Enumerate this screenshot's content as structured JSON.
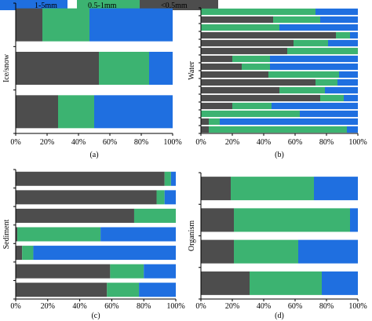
{
  "colors": {
    "lt05": "#4d4d4d",
    "r05_1": "#3cb371",
    "r1_5": "#1f6fe0"
  },
  "legend": [
    {
      "key": "r1_5",
      "label": "1-5mm"
    },
    {
      "key": "r05_1",
      "label": "0.5-1mm"
    },
    {
      "key": "lt05",
      "label": "<0.5mm"
    }
  ],
  "chart_data": [
    {
      "type": "bar",
      "orientation": "horizontal",
      "stacked": true,
      "ylabel": "Ice/snow",
      "panel_label": "(a)",
      "xticks": [
        "0%",
        "20%",
        "40%",
        "60%",
        "80%",
        "100%"
      ],
      "xlim": [
        0,
        100
      ],
      "series": [
        {
          "key": "lt05",
          "values": [
            17,
            53,
            27
          ]
        },
        {
          "key": "r05_1",
          "values": [
            30,
            32,
            23
          ]
        },
        {
          "key": "r1_5",
          "values": [
            53,
            15,
            50
          ]
        }
      ]
    },
    {
      "type": "bar",
      "orientation": "horizontal",
      "stacked": true,
      "ylabel": "Water",
      "panel_label": "(b)",
      "xticks": [
        "0%",
        "20%",
        "40%",
        "60%",
        "80%",
        "100%"
      ],
      "xlim": [
        0,
        100
      ],
      "series": [
        {
          "key": "lt05",
          "values": [
            0,
            46,
            0,
            86,
            59,
            55,
            20,
            26,
            43,
            73,
            50,
            76,
            20,
            0,
            5,
            5
          ]
        },
        {
          "key": "r05_1",
          "values": [
            73,
            30,
            50,
            9,
            22,
            45,
            24,
            18,
            45,
            14,
            29,
            15,
            25,
            63,
            7,
            88
          ]
        },
        {
          "key": "r1_5",
          "values": [
            27,
            24,
            50,
            5,
            19,
            0,
            56,
            56,
            12,
            13,
            21,
            9,
            55,
            37,
            88,
            7
          ]
        }
      ]
    },
    {
      "type": "bar",
      "orientation": "horizontal",
      "stacked": true,
      "ylabel": "Sediment",
      "panel_label": "(c)",
      "xticks": [
        "0%",
        "20%",
        "40%",
        "60%",
        "80%",
        "100%"
      ],
      "xlim": [
        0,
        100
      ],
      "series": [
        {
          "key": "lt05",
          "values": [
            93,
            88,
            74,
            1,
            4,
            59,
            57
          ]
        },
        {
          "key": "r05_1",
          "values": [
            4,
            5,
            26,
            52,
            7,
            21,
            20
          ]
        },
        {
          "key": "r1_5",
          "values": [
            3,
            7,
            0,
            47,
            89,
            20,
            23
          ]
        }
      ]
    },
    {
      "type": "bar",
      "orientation": "horizontal",
      "stacked": true,
      "ylabel": "Organism",
      "panel_label": "(d)",
      "xticks": [
        "0%",
        "20%",
        "40%",
        "60%",
        "80%",
        "100%"
      ],
      "xlim": [
        0,
        100
      ],
      "series": [
        {
          "key": "lt05",
          "values": [
            19,
            21,
            21,
            31
          ]
        },
        {
          "key": "r05_1",
          "values": [
            53,
            74,
            41,
            46
          ]
        },
        {
          "key": "r1_5",
          "values": [
            28,
            5,
            38,
            23
          ]
        }
      ]
    }
  ]
}
